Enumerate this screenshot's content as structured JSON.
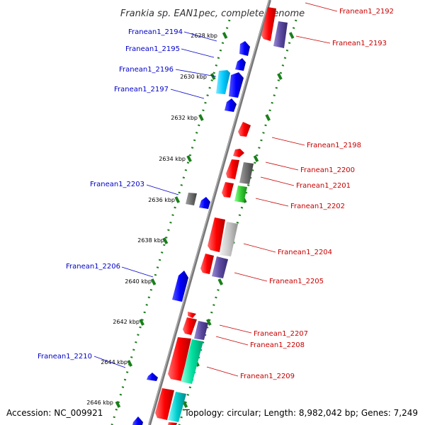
{
  "title": "Frankia sp. EAN1pec, complete genome",
  "accession_text": "Accession: NC_009921",
  "summary_text": "Topology: circular; Length: 8,982,042 bp; Genes: 7,249",
  "colors": {
    "backbone": "#808080",
    "ticks": "#1a7f1a",
    "forward_label": "#0000c8",
    "reverse_label": "#c80000",
    "forward_gene": "#0000ff",
    "cyan_gene": "#00ccff",
    "reverse_gene": "#ff0000",
    "gray_gene": "#707070",
    "purple_gene": "#5c4aa0",
    "green_gene": "#33cc33",
    "lightgray_gene": "#c8c8c8",
    "teal_gene": "#00e0a0"
  },
  "kbp_labels": [
    "2628 kbp",
    "2630 kbp",
    "2632 kbp",
    "2634 kbp",
    "2636 kbp",
    "2638 kbp",
    "2640 kbp",
    "2642 kbp",
    "2644 kbp",
    "2646 kbp"
  ],
  "forward_labels": [
    "Franean1_2194",
    "Franean1_2195",
    "Franean1_2196",
    "Franean1_2197",
    "Franean1_2203",
    "Franean1_2206",
    "Franean1_2210"
  ],
  "reverse_labels": [
    "Franean1_2192",
    "Franean1_2193",
    "Franean1_2198",
    "Franean1_2200",
    "Franean1_2201",
    "Franean1_2202",
    "Franean1_2204",
    "Franean1_2205",
    "Franean1_2207",
    "Franean1_2208",
    "Franean1_2209"
  ]
}
